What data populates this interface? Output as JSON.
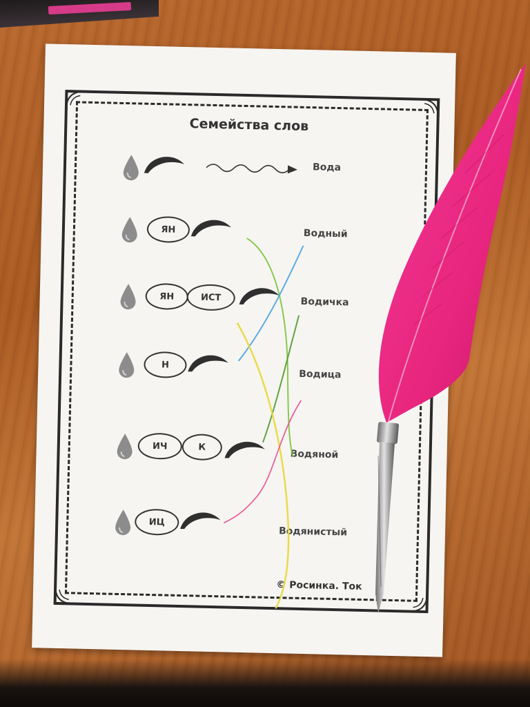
{
  "worksheet": {
    "title": "Семейства слов",
    "copyright": "© Росинка. Ток"
  },
  "rows": [
    {
      "morphemes": [],
      "arrow": true
    },
    {
      "morphemes": [
        "ЯН"
      ]
    },
    {
      "morphemes": [
        "ЯН",
        "ИСТ"
      ]
    },
    {
      "morphemes": [
        "Н"
      ]
    },
    {
      "morphemes": [
        "ИЧ",
        "К"
      ]
    },
    {
      "morphemes": [
        "ИЦ"
      ]
    }
  ],
  "words": [
    "Вода",
    "Водный",
    "Водичка",
    "Водица",
    "Водяной",
    "Водянистый"
  ],
  "colors": {
    "table": "#b06428",
    "paper": "#f6f5f2",
    "ink": "#2a2a2a",
    "quill": "#e8257f",
    "line_green": "#7cc43a",
    "line_blue": "#4aa3e0",
    "line_yellow": "#e8d83a",
    "line_pink": "#e9508f"
  },
  "icons": [
    "water-drop-icon",
    "brow-icon",
    "wavy-arrow-icon",
    "corner-ornament-icon",
    "quill-pen-icon"
  ]
}
